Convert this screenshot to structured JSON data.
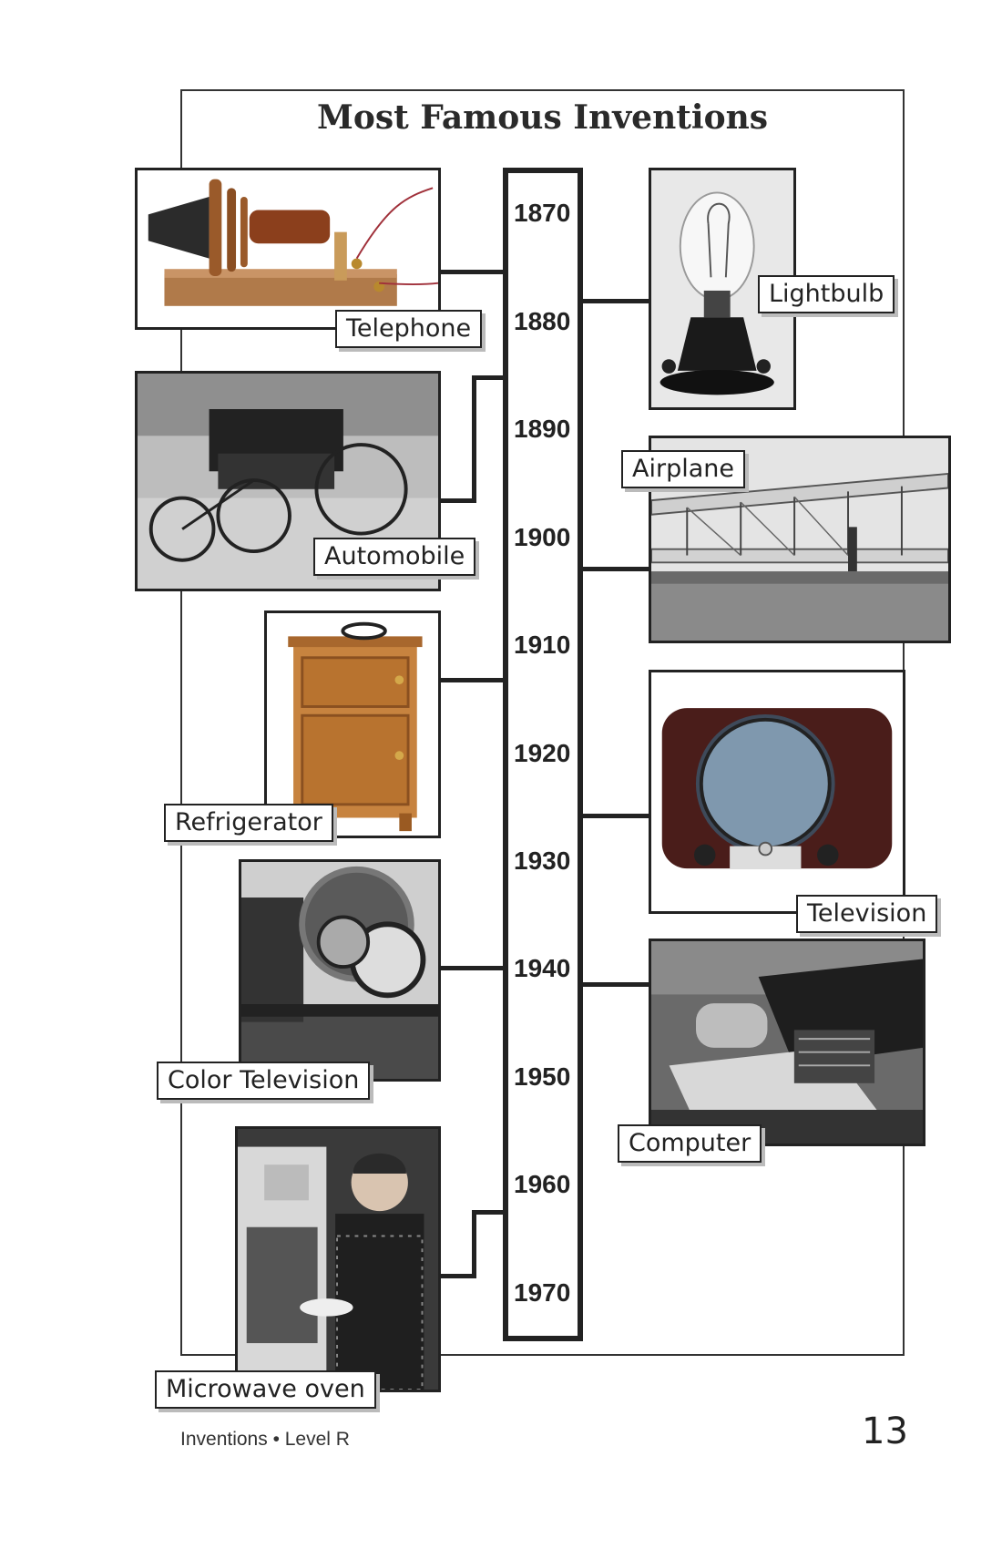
{
  "title": "Most Famous Inventions",
  "years": [
    "1870",
    "1880",
    "1890",
    "1900",
    "1910",
    "1920",
    "1930",
    "1940",
    "1950",
    "1960",
    "1970"
  ],
  "inventions": {
    "telephone": "Telephone",
    "lightbulb": "Lightbulb",
    "automobile": "Automobile",
    "airplane": "Airplane",
    "refrigerator": "Refrigerator",
    "television": "Television",
    "color_television": "Color Television",
    "computer": "Computer",
    "microwave_oven": "Microwave oven"
  },
  "footer": {
    "book": "Inventions • Level R",
    "page_number": "13"
  }
}
